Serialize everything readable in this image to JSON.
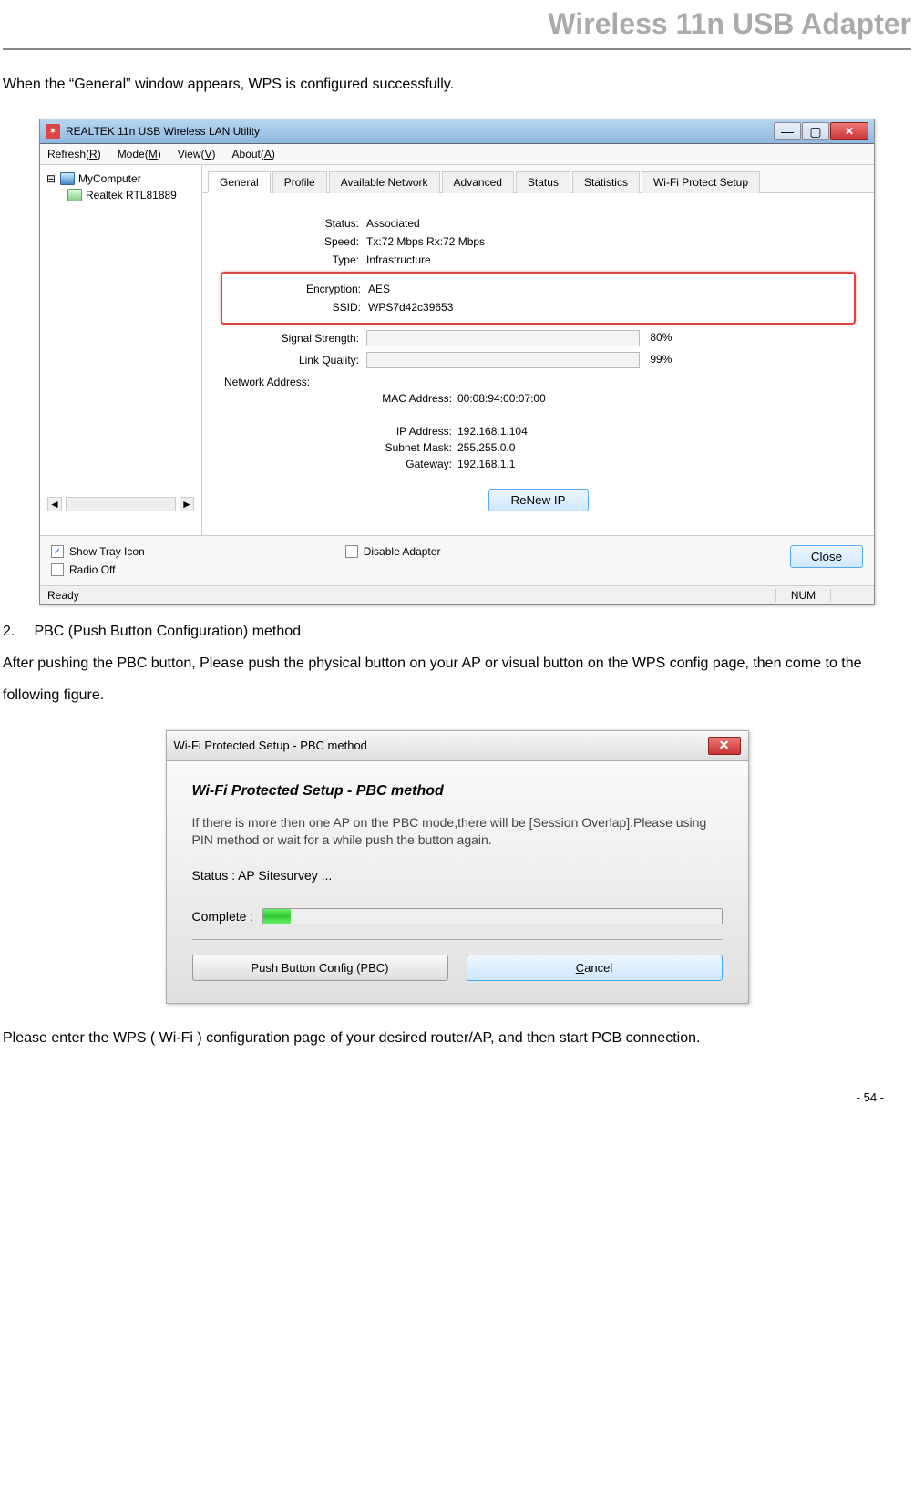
{
  "header": {
    "title": "Wireless 11n USB Adapter"
  },
  "intro_text": "When the “General” window appears, WPS is configured successfully.",
  "win1": {
    "title": "REALTEK 11n USB Wireless LAN Utility",
    "menus": {
      "refresh": "Refresh(R)",
      "mode": "Mode(M)",
      "view": "View(V)",
      "about": "About(A)"
    },
    "tree": {
      "root": "MyComputer",
      "child": "Realtek RTL81889"
    },
    "tabs": [
      "General",
      "Profile",
      "Available Network",
      "Advanced",
      "Status",
      "Statistics",
      "Wi-Fi Protect Setup"
    ],
    "active_tab": 0,
    "info": {
      "status_label": "Status:",
      "status": "Associated",
      "speed_label": "Speed:",
      "speed": "Tx:72 Mbps Rx:72 Mbps",
      "type_label": "Type:",
      "type": "Infrastructure",
      "enc_label": "Encryption:",
      "enc": "AES",
      "ssid_label": "SSID:",
      "ssid": "WPS7d42c39653",
      "signal_label": "Signal Strength:",
      "signal_pct": 80,
      "signal_pct_text": "80%",
      "link_label": "Link Quality:",
      "link_pct": 99,
      "link_pct_text": "99%",
      "netaddr_label": "Network Address:",
      "mac_label": "MAC Address:",
      "mac": "00:08:94:00:07:00",
      "ip_label": "IP Address:",
      "ip": "192.168.1.104",
      "mask_label": "Subnet Mask:",
      "mask": "255.255.0.0",
      "gw_label": "Gateway:",
      "gw": "192.168.1.1"
    },
    "renew_label": "ReNew IP",
    "bottom": {
      "show_tray": "Show Tray Icon",
      "show_tray_checked": true,
      "radio_off": "Radio Off",
      "radio_off_checked": false,
      "disable_adapter": "Disable Adapter",
      "disable_checked": false,
      "close": "Close"
    },
    "status_bar": {
      "ready": "Ready",
      "num": "NUM"
    }
  },
  "section2": {
    "num": "2.",
    "head": "PBC (Push Button Configuration) method",
    "text": "After pushing the PBC button, Please push the physical button on your AP or visual button on the WPS config page, then come to the following figure."
  },
  "dlg": {
    "title": "Wi-Fi Protected Setup - PBC method",
    "heading": "Wi-Fi Protected Setup - PBC method",
    "body_text": "If there is more then one AP on the PBC mode,there will be [Session Overlap].Please using PIN method or wait for a while push the button again.",
    "status": "Status : AP Sitesurvey ...",
    "complete_label": "Complete :",
    "complete_pct": 6,
    "pbc_btn": "Push Button Config (PBC)",
    "cancel_btn": "Cancel"
  },
  "outro_text": "Please enter the WPS ( Wi-Fi ) configuration page of your desired router/AP, and then start PCB connection.",
  "page_number": "- 54 -"
}
